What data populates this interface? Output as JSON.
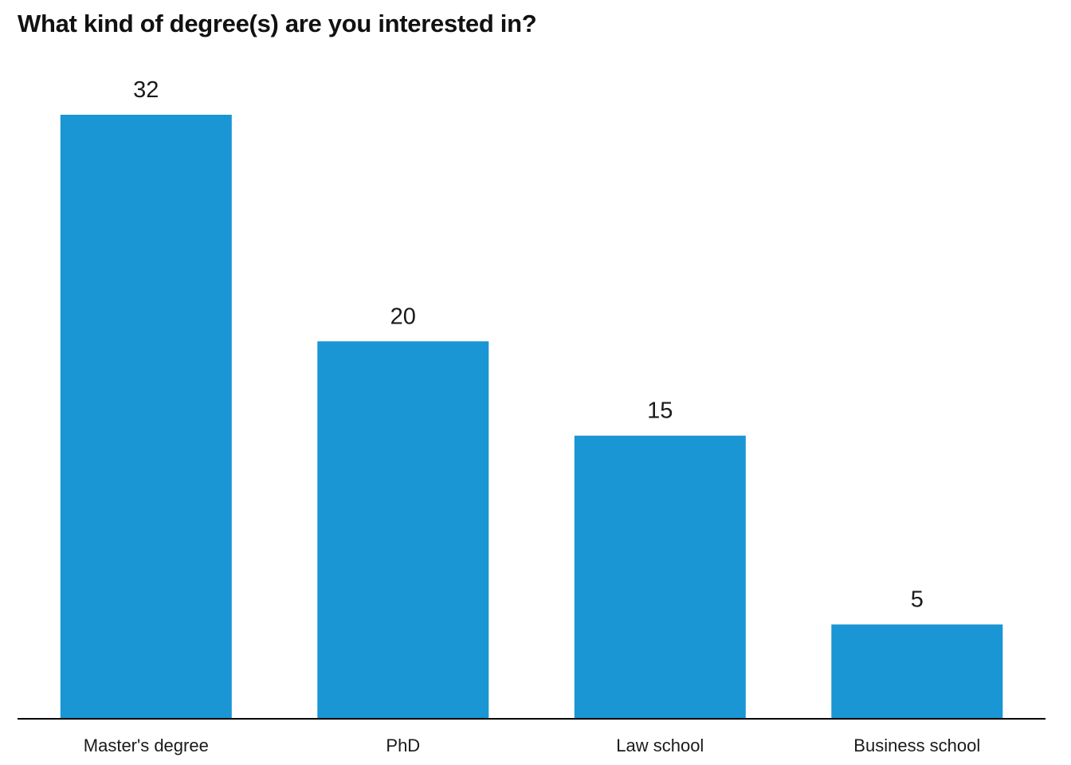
{
  "chart_data": {
    "type": "bar",
    "title": "What kind of degree(s) are you interested in?",
    "categories": [
      "Master's degree",
      "PhD",
      "Law school",
      "Business school"
    ],
    "values": [
      32,
      20,
      15,
      5
    ],
    "data_labels": [
      "32",
      "20",
      "15",
      "5"
    ],
    "ylim": [
      0,
      32
    ],
    "grid": false,
    "legend": "none",
    "bar_color": "#1996d3",
    "axis_color": "#000000"
  }
}
